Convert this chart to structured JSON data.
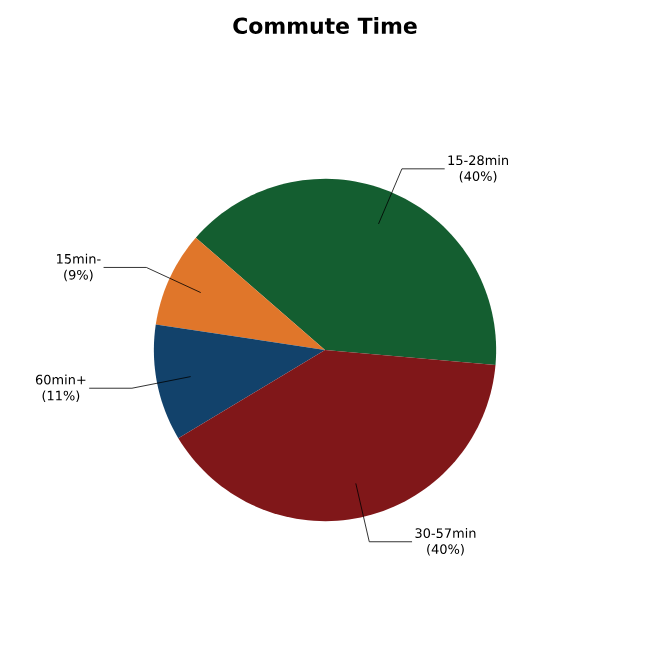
{
  "chart_data": {
    "type": "pie",
    "title": "Commute Time",
    "categories": [
      "15-28min",
      "15min-",
      "60min+",
      "30-57min"
    ],
    "values": [
      40,
      9,
      11,
      40
    ],
    "colors": [
      "#145e30",
      "#e0762a",
      "#12426b",
      "#801719"
    ],
    "value_labels": [
      "(40%)",
      "(9%)",
      "(11%)",
      "(40%)"
    ]
  }
}
